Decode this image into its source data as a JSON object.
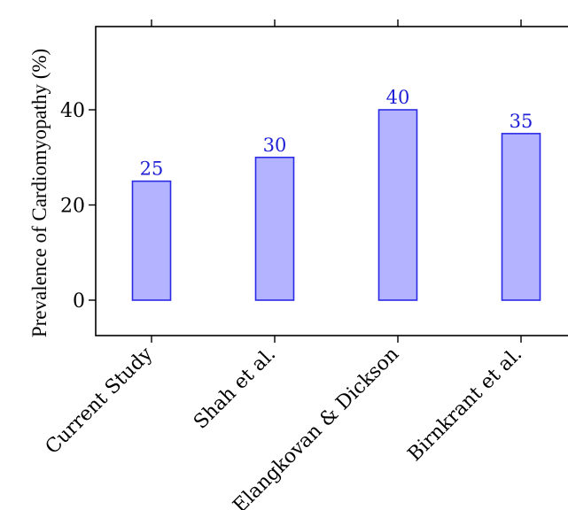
{
  "chart_data": {
    "type": "bar",
    "categories": [
      "Current Study",
      "Shah et al.",
      "Elangkovan & Dickson",
      "Birnkrant et al."
    ],
    "values": [
      25,
      30,
      40,
      35
    ],
    "data_labels": [
      "25",
      "30",
      "40",
      "35"
    ],
    "ylabel": "Prevalence of Cardiomyopathy (%)",
    "yticks": [
      "0",
      "20",
      "40"
    ],
    "ytick_values": [
      0,
      20,
      40
    ],
    "ylim": [
      -7,
      57
    ],
    "grid": false,
    "colors": {
      "bar_fill": "#b3b3ff",
      "bar_stroke": "#2a2ae6",
      "label": "#1f1fd6",
      "axis": "#000000"
    }
  }
}
